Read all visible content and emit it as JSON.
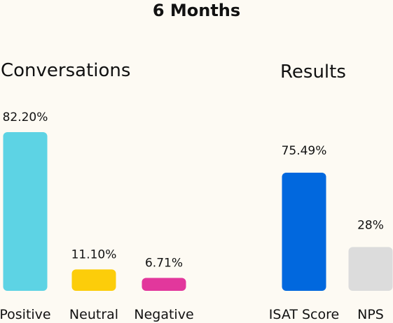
{
  "title": "6 Months",
  "chart_data": [
    {
      "type": "bar",
      "title": "Conversations",
      "categories": [
        "Positive",
        "Neutral",
        "Negative"
      ],
      "values": [
        82.2,
        11.1,
        6.71
      ],
      "value_labels": [
        "82.20%",
        "11.10%",
        "6.71%"
      ],
      "colors": [
        "#5dd3e4",
        "#fccd0a",
        "#e2379c"
      ],
      "ylim": [
        0,
        82.2
      ],
      "grid": false
    },
    {
      "type": "bar",
      "title": "Results",
      "categories": [
        "ISAT Score",
        "NPS"
      ],
      "values": [
        75.49,
        28
      ],
      "value_labels": [
        "75.49%",
        "28%"
      ],
      "colors": [
        "#0168de",
        "#dcdcdc"
      ],
      "ylim": [
        0,
        75.49
      ],
      "grid": false
    }
  ]
}
